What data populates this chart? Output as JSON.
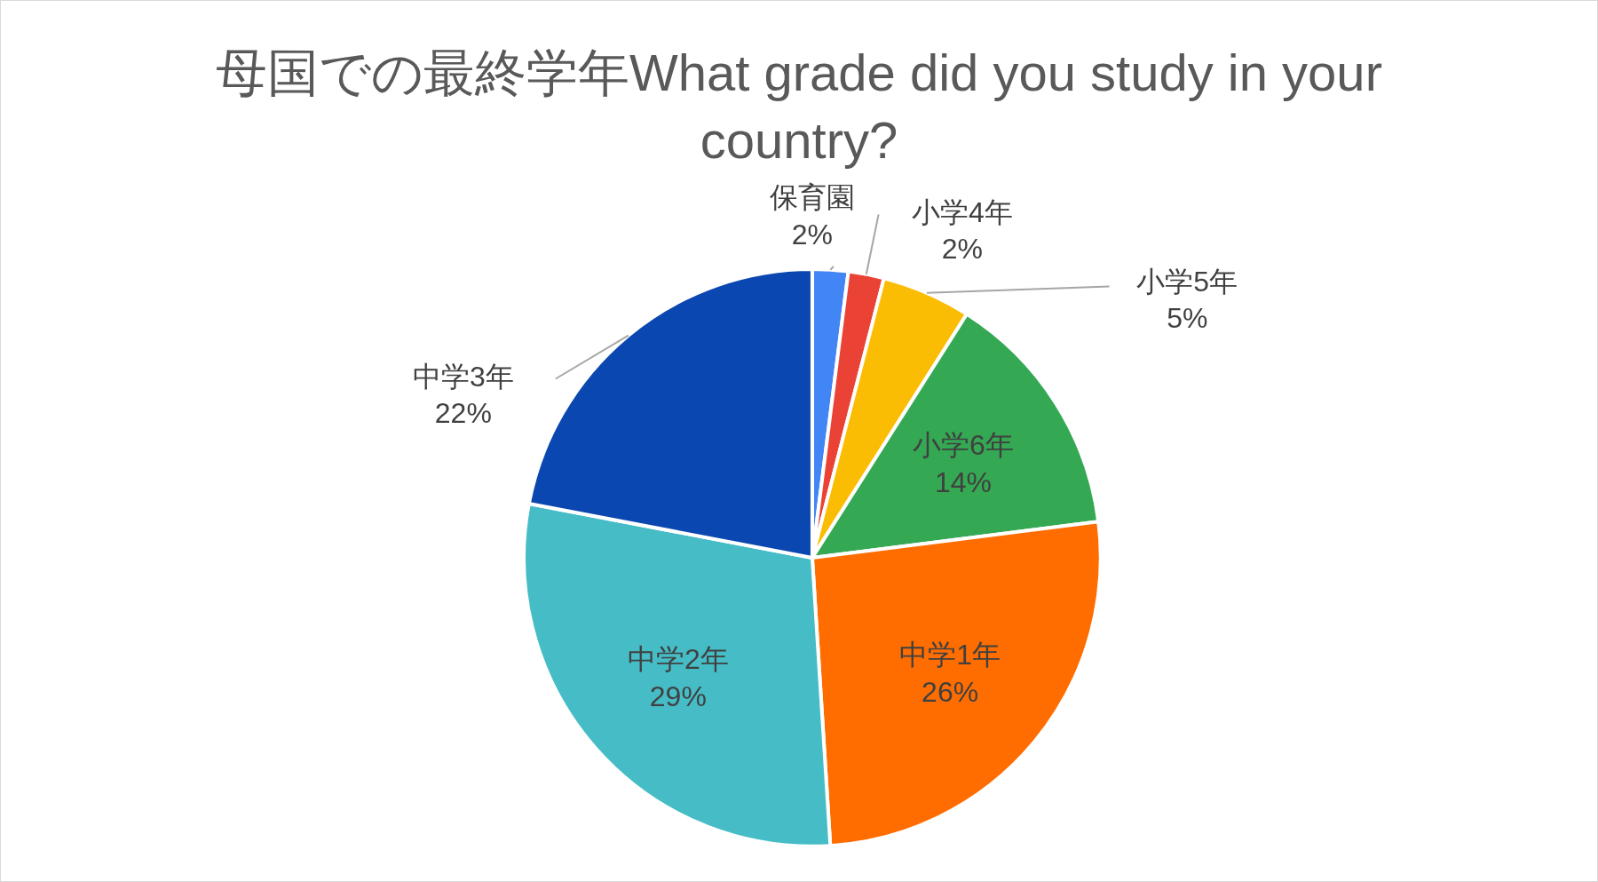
{
  "chart_data": {
    "type": "pie",
    "title": "母国での最終学年What grade did you study in your country?",
    "categories": [
      "保育園",
      "小学4年",
      "小学5年",
      "小学6年",
      "中学1年",
      "中学2年",
      "中学3年"
    ],
    "values": [
      2,
      2,
      5,
      14,
      26,
      29,
      22
    ],
    "colors": [
      "#4285f4",
      "#ea4335",
      "#fbbc04",
      "#34a853",
      "#ff6d01",
      "#46bdc6",
      "#0b47b0"
    ],
    "value_labels": [
      "2%",
      "2%",
      "5%",
      "14%",
      "26%",
      "29%",
      "22%"
    ]
  }
}
